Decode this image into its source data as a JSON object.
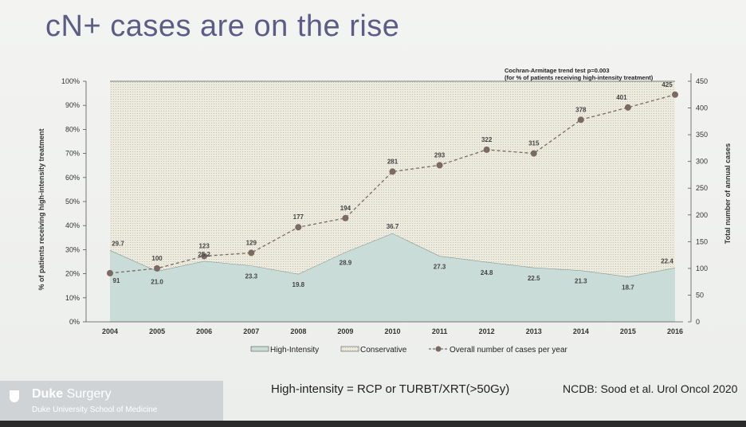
{
  "slide": {
    "title": "cN+ cases are on the rise",
    "footer_definition": "High-intensity = RCP or TURBT/XRT(>50Gy)",
    "footer_citation": "NCDB: Sood et al. Urol Oncol 2020",
    "brand_name_bold": "Duke",
    "brand_name_rest": " Surgery",
    "brand_subtitle": "Duke University School of Medicine"
  },
  "colors": {
    "high_intensity_fill": "#c9dcd8",
    "conservative_fill": "#e9e9dc",
    "cases_line": "#7a6a63",
    "title": "#5c5c86"
  },
  "chart_data": {
    "type": "area",
    "categories": [
      "2004",
      "2005",
      "2006",
      "2007",
      "2008",
      "2009",
      "2010",
      "2011",
      "2012",
      "2013",
      "2014",
      "2015",
      "2016"
    ],
    "series": [
      {
        "name": "High-Intensity",
        "kind": "area",
        "axis": "left",
        "values": [
          29.7,
          21.0,
          25.2,
          23.3,
          19.8,
          28.9,
          36.7,
          27.3,
          24.8,
          22.5,
          21.3,
          18.7,
          22.4
        ],
        "labels": [
          "29.7",
          "21.0",
          "25.2",
          "23.3",
          "19.8",
          "28.9",
          "36.7",
          "27.3",
          "24.8",
          "22.5",
          "21.3",
          "18.7",
          "22.4"
        ]
      },
      {
        "name": "Conservative",
        "kind": "area",
        "axis": "left",
        "values": [
          70.3,
          79.0,
          74.8,
          76.7,
          80.2,
          71.1,
          63.3,
          72.7,
          75.2,
          77.5,
          78.7,
          81.3,
          77.6
        ]
      },
      {
        "name": "Overall number of cases per year",
        "kind": "line",
        "axis": "right",
        "values": [
          91,
          100,
          123,
          129,
          177,
          194,
          281,
          293,
          322,
          315,
          378,
          401,
          425
        ],
        "labels": [
          "91",
          "100",
          "123",
          "129",
          "177",
          "194",
          "281",
          "293",
          "322",
          "315",
          "378",
          "401",
          "425"
        ]
      }
    ],
    "left_axis": {
      "label": "% of patients receiving high-intensity treatment",
      "ticks": [
        "0%",
        "10%",
        "20%",
        "30%",
        "40%",
        "50%",
        "60%",
        "70%",
        "80%",
        "90%",
        "100%"
      ],
      "ylim": [
        0,
        100
      ]
    },
    "right_axis": {
      "label": "Total number of annual cases",
      "ticks": [
        "0",
        "50",
        "100",
        "150",
        "200",
        "250",
        "300",
        "350",
        "400",
        "450"
      ],
      "ylim": [
        0,
        450
      ]
    },
    "annotation": {
      "line1": "Cochran-Armitage trend test p=0.003",
      "line2": "(for % of patients receiving high-intensity treatment)"
    },
    "legend": [
      "High-Intensity",
      "Conservative",
      "Overall number of cases per year"
    ],
    "legend_position": "bottom",
    "grid": false
  }
}
